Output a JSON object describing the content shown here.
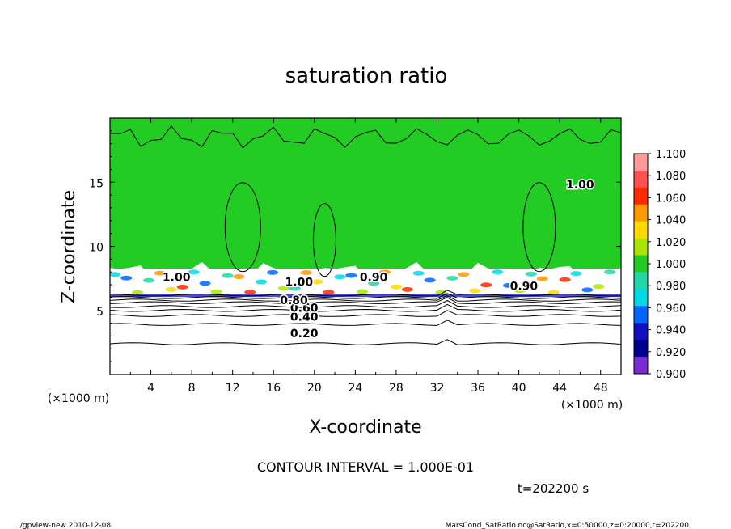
{
  "chart_data": {
    "type": "heatmap",
    "title": "saturation ratio",
    "xlabel": "X-coordinate",
    "ylabel": "Z-coordinate",
    "x_unit_left": "(×1000 m)",
    "x_unit_right": "(×1000 m)",
    "xlim": [
      0,
      50
    ],
    "ylim": [
      0,
      20
    ],
    "x_ticks": [
      "4",
      "8",
      "12",
      "16",
      "20",
      "24",
      "28",
      "32",
      "36",
      "40",
      "44",
      "48"
    ],
    "y_ticks": [
      "5",
      "10",
      "15"
    ],
    "colorbar": {
      "labels": [
        "1.100",
        "1.080",
        "1.060",
        "1.040",
        "1.020",
        "1.000",
        "0.980",
        "0.960",
        "0.940",
        "0.920",
        "0.900"
      ],
      "colors": [
        "#ff9a9a",
        "#ff5050",
        "#ff2a00",
        "#ff9900",
        "#ffd800",
        "#a8e600",
        "#22cc22",
        "#22d6a8",
        "#00d8e8",
        "#0066ff",
        "#1010c0",
        "#000090",
        "#7a2bd6"
      ]
    },
    "contour_labels": [
      "0.20",
      "0.40",
      "0.60",
      "0.80",
      "1.00",
      "0.90",
      "1.00",
      "0.90",
      "1.00"
    ],
    "contour_interval": "CONTOUR INTERVAL = 1.000E-01",
    "time": "t=202200 s"
  },
  "footer": {
    "left": "./gpview-new   2010-12-08",
    "right": "MarsCond_SatRatio.nc@SatRatio,x=0:50000,z=0:20000,t=202200"
  }
}
